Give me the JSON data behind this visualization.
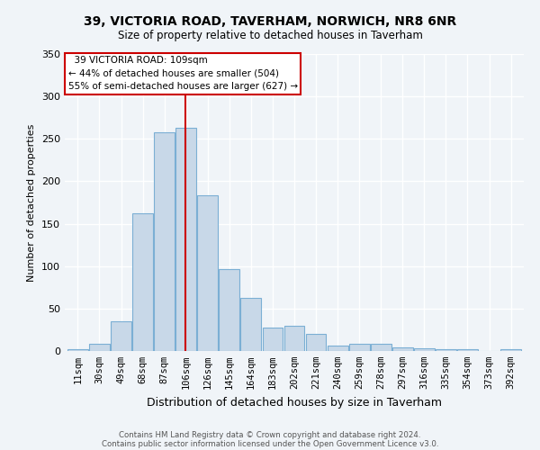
{
  "title_line1": "39, VICTORIA ROAD, TAVERHAM, NORWICH, NR8 6NR",
  "title_line2": "Size of property relative to detached houses in Taverham",
  "xlabel": "Distribution of detached houses by size in Taverham",
  "ylabel": "Number of detached properties",
  "bar_labels": [
    "11sqm",
    "30sqm",
    "49sqm",
    "68sqm",
    "87sqm",
    "106sqm",
    "126sqm",
    "145sqm",
    "164sqm",
    "183sqm",
    "202sqm",
    "221sqm",
    "240sqm",
    "259sqm",
    "278sqm",
    "297sqm",
    "316sqm",
    "335sqm",
    "354sqm",
    "373sqm",
    "392sqm"
  ],
  "bar_values": [
    2,
    8,
    35,
    162,
    258,
    263,
    184,
    96,
    63,
    28,
    30,
    20,
    6,
    9,
    9,
    4,
    3,
    2,
    2,
    0,
    2
  ],
  "bar_color": "#c8d8e8",
  "bar_edge_color": "#7bafd4",
  "property_label": "39 VICTORIA ROAD: 109sqm",
  "smaller_pct": 44,
  "smaller_count": 504,
  "larger_pct": 55,
  "larger_count": 627,
  "vline_color": "#cc0000",
  "annotation_box_color": "#cc0000",
  "background_color": "#f0f4f8",
  "grid_color": "#ffffff",
  "footer_line1": "Contains HM Land Registry data © Crown copyright and database right 2024.",
  "footer_line2": "Contains public sector information licensed under the Open Government Licence v3.0.",
  "ylim": [
    0,
    350
  ],
  "yticks": [
    0,
    50,
    100,
    150,
    200,
    250,
    300,
    350
  ]
}
